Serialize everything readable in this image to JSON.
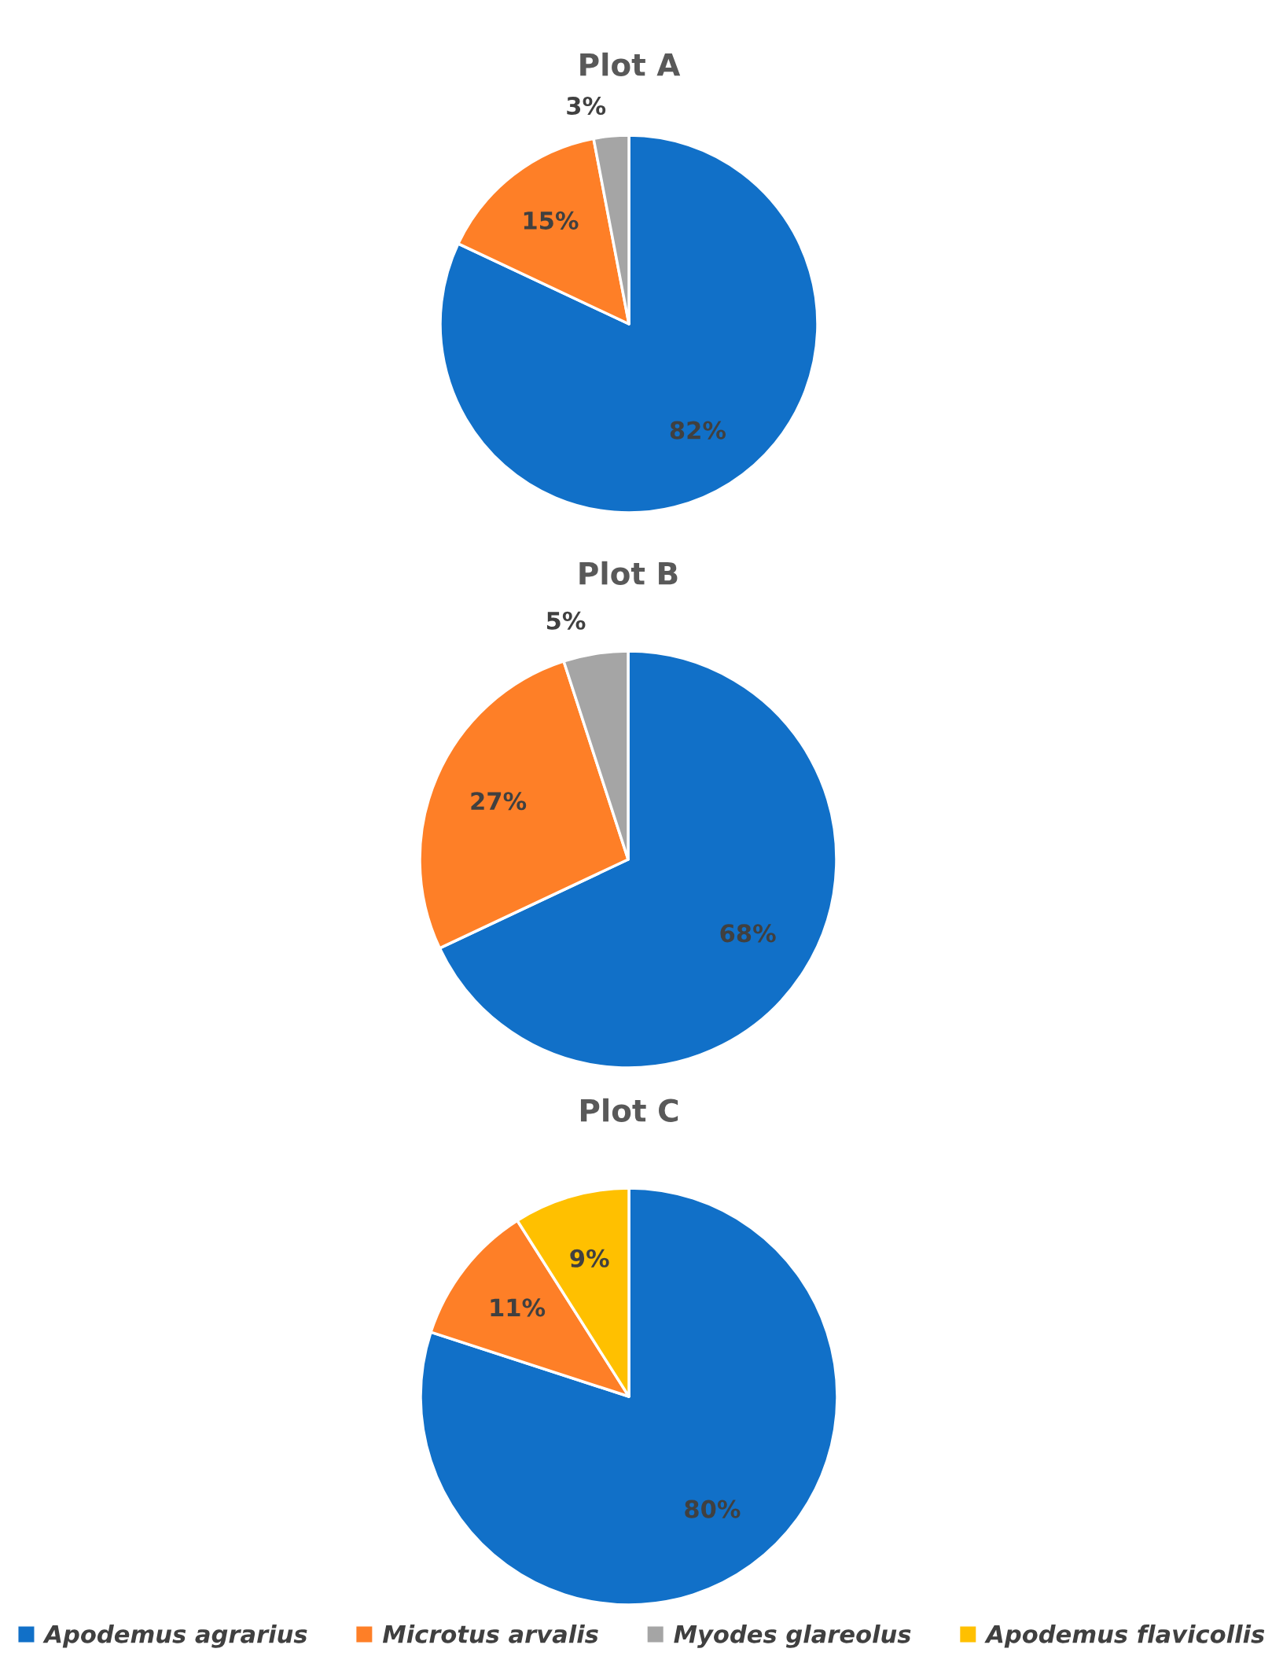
{
  "chart_data": [
    {
      "type": "pie",
      "title": "Plot A",
      "categories": [
        "Apodemus agrarius",
        "Microtus arvalis",
        "Myodes glareolus"
      ],
      "values": [
        82,
        15,
        3
      ],
      "colors": [
        "#1170c8",
        "#fe7f27",
        "#a5a5a5"
      ],
      "value_labels": [
        "82%",
        "15%",
        "3%"
      ],
      "legend": "bottom"
    },
    {
      "type": "pie",
      "title": "Plot B",
      "categories": [
        null,
        null,
        null
      ],
      "values": [
        68,
        27,
        5
      ],
      "colors": [
        "#1170c8",
        "#fe7f27",
        "#a5a5a5"
      ],
      "value_labels": [
        "68%",
        "27%",
        "5%"
      ]
    },
    {
      "type": "pie",
      "title": "Plot C",
      "categories": [
        null,
        null,
        "Apodemus flavicollis"
      ],
      "values": [
        80,
        11,
        9
      ],
      "colors": [
        "#1170c8",
        "#fe7f27",
        "#ffc000"
      ],
      "value_labels": [
        "80%",
        "11%",
        "9%"
      ],
      "legend": "bottom"
    }
  ]
}
